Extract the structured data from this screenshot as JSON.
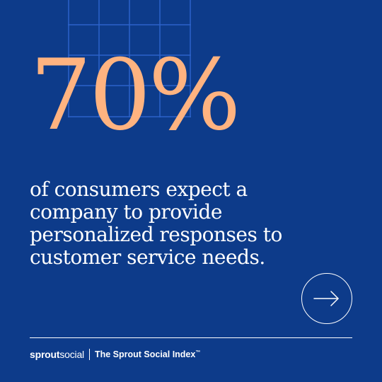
{
  "stat": {
    "value": "70%",
    "description": "of consumers expect a company to provide personalized responses to customer service needs."
  },
  "footer": {
    "brand_part1": "sprout",
    "brand_part2": "social",
    "index_name": "The Sprout Social Index",
    "trademark": "™"
  },
  "icons": {
    "next": "arrow-right-icon",
    "background": "grid-pattern"
  },
  "colors": {
    "background": "#0d3b8a",
    "accent": "#ffb380",
    "text": "#ffffff",
    "grid_lines": "#2c63c9"
  }
}
